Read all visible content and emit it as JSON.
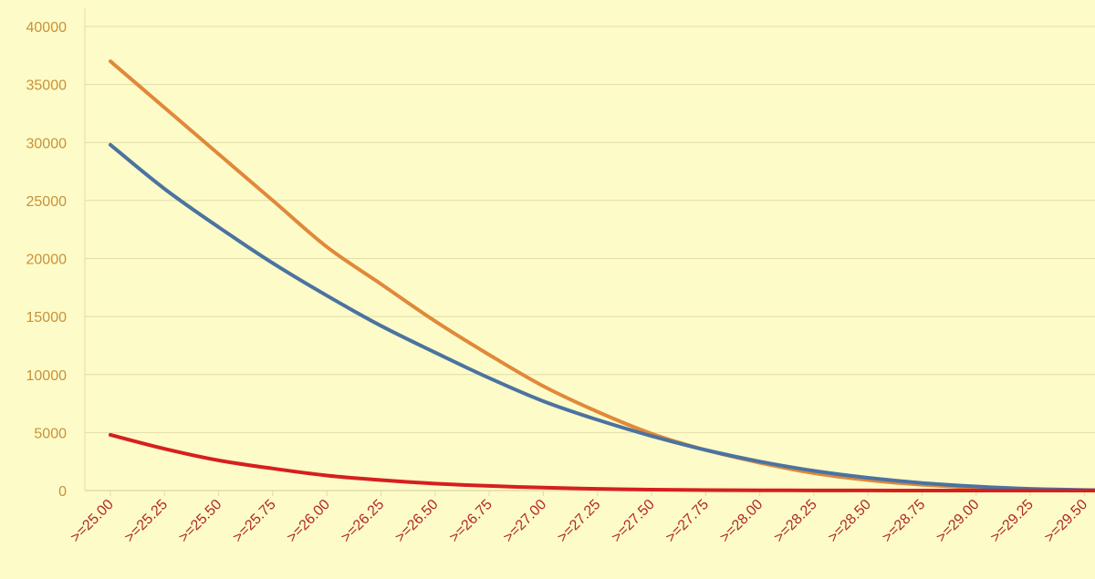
{
  "chart_data": {
    "type": "line",
    "title": "",
    "xlabel": "",
    "ylabel": "",
    "categories": [
      ">=25.00",
      ">=25.25",
      ">=25.50",
      ">=25.75",
      ">=26.00",
      ">=26.25",
      ">=26.50",
      ">=26.75",
      ">=27.00",
      ">=27.25",
      ">=27.50",
      ">=27.75",
      ">=28.00",
      ">=28.25",
      ">=28.50",
      ">=28.75",
      ">=29.00",
      ">=29.25",
      ">=29.50"
    ],
    "ylim": [
      0,
      40000
    ],
    "yticks": [
      "0",
      "5000",
      "10000",
      "15000",
      "20000",
      "25000",
      "30000",
      "35000",
      "40000"
    ],
    "grid": true,
    "legend": "none",
    "colors": {
      "background": "#fdfbc8",
      "ytick_text": "#c8923a",
      "xtick_text": "#b0282a",
      "gridline": "#e2dcab"
    },
    "series": [
      {
        "color": "#e0893a",
        "values": [
          37000,
          33000,
          29000,
          25000,
          21000,
          17800,
          14600,
          11700,
          9000,
          6800,
          4900,
          3500,
          2400,
          1500,
          900,
          500,
          250,
          100,
          30
        ]
      },
      {
        "color": "#4b73a0",
        "values": [
          29800,
          26000,
          22700,
          19600,
          16800,
          14200,
          11900,
          9700,
          7700,
          6100,
          4700,
          3500,
          2500,
          1700,
          1100,
          650,
          350,
          150,
          50
        ]
      },
      {
        "color": "#d61f1f",
        "values": [
          4800,
          3600,
          2600,
          1900,
          1300,
          900,
          600,
          400,
          250,
          150,
          80,
          40,
          20,
          10,
          5,
          0,
          0,
          0,
          0
        ]
      }
    ]
  }
}
